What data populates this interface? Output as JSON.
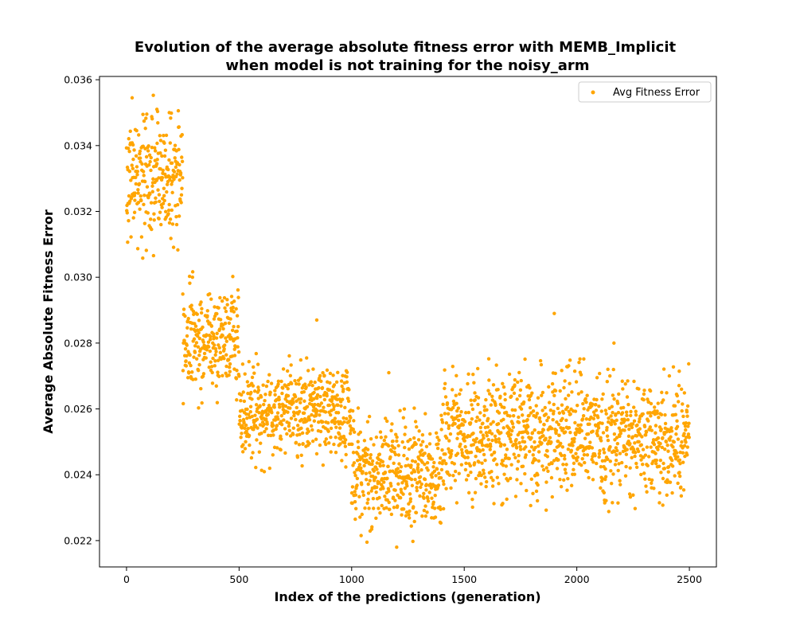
{
  "chart_data": {
    "type": "scatter",
    "title_line1": "Evolution of the average absolute fitness error with MEMB_Implicit",
    "title_line2": "when model is not training for the noisy_arm",
    "xlabel": "Index of the predictions (generation)",
    "ylabel": "Average Absolute Fitness Error",
    "xlim": [
      -120,
      2620
    ],
    "ylim": [
      0.0212,
      0.0361
    ],
    "xticks": [
      0,
      500,
      1000,
      1500,
      2000,
      2500
    ],
    "xtick_labels": [
      "0",
      "500",
      "1000",
      "1500",
      "2000",
      "2500"
    ],
    "yticks": [
      0.022,
      0.024,
      0.026,
      0.028,
      0.03,
      0.032,
      0.034,
      0.036
    ],
    "ytick_labels": [
      "0.022",
      "0.024",
      "0.026",
      "0.028",
      "0.030",
      "0.032",
      "0.034",
      "0.036"
    ],
    "grid": false,
    "legend_position": "top-right",
    "series": [
      {
        "name": "Avg Fitness Error",
        "color": "#ffa500",
        "n_points": 2500,
        "segments": [
          {
            "x_range": [
              0,
              249
            ],
            "mean": 0.033,
            "spread": 0.001
          },
          {
            "x_range": [
              250,
              499
            ],
            "mean": 0.0281,
            "spread": 0.0008
          },
          {
            "x_range": [
              500,
              999
            ],
            "mean": 0.0259,
            "spread": 0.0007
          },
          {
            "x_range": [
              1000,
              1400
            ],
            "mean": 0.024,
            "spread": 0.0008
          },
          {
            "x_range": [
              1400,
              2499
            ],
            "mean": 0.0252,
            "spread": 0.0009
          }
        ],
        "notable_points": [
          {
            "x": 25,
            "y": 0.03545
          },
          {
            "x": 135,
            "y": 0.0351
          },
          {
            "x": 190,
            "y": 0.035
          },
          {
            "x": 1900,
            "y": 0.0289
          },
          {
            "x": 845,
            "y": 0.0287
          },
          {
            "x": 1200,
            "y": 0.0218
          },
          {
            "x": 1165,
            "y": 0.0271
          },
          {
            "x": 2165,
            "y": 0.028
          }
        ]
      }
    ]
  }
}
